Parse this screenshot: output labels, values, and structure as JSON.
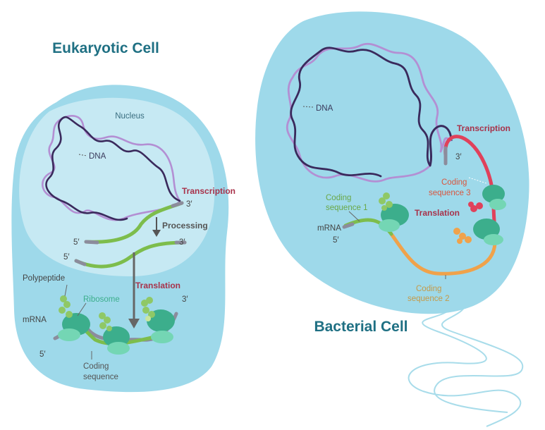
{
  "eukaryotic": {
    "title": "Eukaryotic Cell",
    "nucleus": "Nucleus",
    "dna": "DNA",
    "transcription": "Transcription",
    "processing": "Processing",
    "translation": "Translation",
    "polypeptide": "Polypeptide",
    "ribosome": "Ribosome",
    "mrna": "mRNA",
    "coding_line1": "Coding",
    "coding_line2": "sequence",
    "prime3_a": "3′",
    "prime5_a": "5′",
    "prime3_b": "3′",
    "prime5_b": "5′",
    "prime3_c": "3′",
    "prime5_c": "5′"
  },
  "bacterial": {
    "title": "Bacterial Cell",
    "dna": "DNA",
    "transcription": "Transcription",
    "prime3": "3′",
    "coding3_line1": "Coding",
    "coding3_line2": "sequence 3",
    "coding1_line1": "Coding",
    "coding1_line2": "sequence 1",
    "translation": "Translation",
    "mrna": "mRNA",
    "prime5": "5′",
    "coding2_line1": "Coding",
    "coding2_line2": "sequence 2"
  },
  "colors": {
    "cell": "#9ed9ea",
    "nucleus": "#c6e9f3",
    "dna_dark": "#3a2a5c",
    "dna_light": "#b38fd3",
    "mrna_green": "#7dbd4c",
    "transcript_red": "#e0415b",
    "transcript_orange": "#f0a24a",
    "ribosome": "#3cae8c",
    "ribosome_light": "#74d6b4",
    "title": "#1f7083",
    "transcription_text": "#a8324a",
    "coding3_text": "#d9563f",
    "coding2_text": "#c59a48",
    "coding1_text": "#6aa848"
  }
}
